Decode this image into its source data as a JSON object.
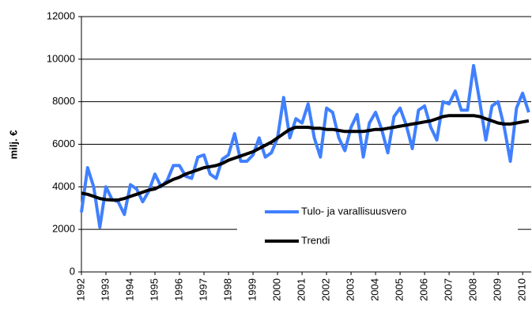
{
  "chart_data": {
    "type": "line",
    "y_label": "milj. €",
    "x": [
      1992,
      1992.25,
      1992.5,
      1992.75,
      1993,
      1993.25,
      1993.5,
      1993.75,
      1994,
      1994.25,
      1994.5,
      1994.75,
      1995,
      1995.25,
      1995.5,
      1995.75,
      1996,
      1996.25,
      1996.5,
      1996.75,
      1997,
      1997.25,
      1997.5,
      1997.75,
      1998,
      1998.25,
      1998.5,
      1998.75,
      1999,
      1999.25,
      1999.5,
      1999.75,
      2000,
      2000.25,
      2000.5,
      2000.75,
      2001,
      2001.25,
      2001.5,
      2001.75,
      2002,
      2002.25,
      2002.5,
      2002.75,
      2003,
      2003.25,
      2003.5,
      2003.75,
      2004,
      2004.25,
      2004.5,
      2004.75,
      2005,
      2005.25,
      2005.5,
      2005.75,
      2006,
      2006.25,
      2006.5,
      2006.75,
      2007,
      2007.25,
      2007.5,
      2007.75,
      2008,
      2008.25,
      2008.5,
      2008.75,
      2009,
      2009.25,
      2009.5,
      2009.75,
      2010,
      2010.25
    ],
    "series": [
      {
        "name": "Tulo- ja varallisuusvero",
        "color": "#4080ff",
        "values": [
          2800,
          4900,
          4000,
          2100,
          4000,
          3400,
          3300,
          2700,
          4100,
          3900,
          3300,
          3800,
          4600,
          4000,
          4300,
          5000,
          5000,
          4500,
          4400,
          5400,
          5500,
          4600,
          4400,
          5300,
          5500,
          6500,
          5200,
          5200,
          5500,
          6300,
          5400,
          5600,
          6300,
          8200,
          6300,
          7200,
          7000,
          7900,
          6300,
          5400,
          7700,
          7500,
          6300,
          5700,
          6800,
          7400,
          5400,
          7000,
          7500,
          6700,
          5600,
          7300,
          7700,
          6900,
          5800,
          7600,
          7800,
          6800,
          6200,
          8000,
          7900,
          8500,
          7600,
          7600,
          9700,
          8000,
          6200,
          7800,
          8000,
          6800,
          5200,
          7700,
          8400,
          7500
        ]
      },
      {
        "name": "Trendi",
        "color": "#000000",
        "values": [
          3700,
          3650,
          3550,
          3450,
          3400,
          3380,
          3380,
          3450,
          3550,
          3650,
          3750,
          3850,
          3900,
          4050,
          4200,
          4350,
          4450,
          4600,
          4700,
          4800,
          4900,
          4950,
          5000,
          5100,
          5250,
          5350,
          5450,
          5550,
          5650,
          5800,
          5950,
          6100,
          6300,
          6500,
          6700,
          6800,
          6800,
          6800,
          6750,
          6750,
          6700,
          6700,
          6650,
          6600,
          6600,
          6600,
          6600,
          6650,
          6700,
          6700,
          6750,
          6800,
          6850,
          6900,
          6950,
          7000,
          7050,
          7100,
          7200,
          7300,
          7350,
          7350,
          7350,
          7350,
          7350,
          7300,
          7200,
          7100,
          7000,
          6950,
          6950,
          7000,
          7050,
          7100
        ]
      }
    ],
    "xlim": [
      1992,
      2010.35
    ],
    "xticks": [
      1992,
      1993,
      1994,
      1995,
      1996,
      1997,
      1998,
      1999,
      2000,
      2001,
      2002,
      2003,
      2004,
      2005,
      2006,
      2007,
      2008,
      2009,
      2010
    ],
    "ylim": [
      0,
      12000
    ],
    "yticks": [
      0,
      2000,
      4000,
      6000,
      8000,
      10000,
      12000
    ],
    "grid": true
  }
}
